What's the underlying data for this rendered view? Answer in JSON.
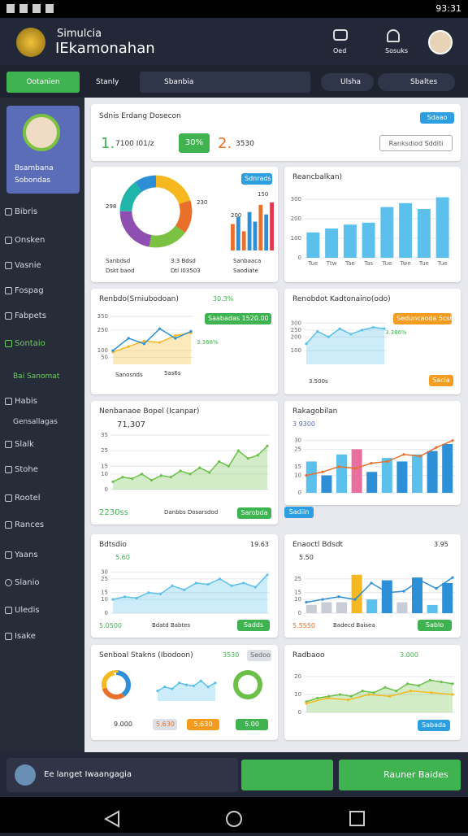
{
  "status_bar": {
    "time": "93:31"
  },
  "header": {
    "app_name": "Simulcia",
    "title": "IEkamonahan",
    "actions": [
      "Oed",
      "Sosuks"
    ]
  },
  "toolbar": {
    "primary_button": "Ootanien",
    "view": "Stanly",
    "search": "Sbanbia",
    "filter": "Ulsha",
    "status": "Sbaltes"
  },
  "sidebar": {
    "profile": {
      "name": "Bsambana",
      "role": "Sobondas"
    },
    "items": [
      "Bibris",
      "Onsken",
      "Vasnie",
      "Fospag",
      "Fabpets",
      "Sontaio"
    ],
    "section": "Bai Sanomat",
    "items2": [
      "Habis",
      "Gensallagas",
      "Slalk",
      "Stohe",
      "Rootel",
      "Rances",
      "Yaans",
      "Slanio",
      "Uledis",
      "Isake"
    ]
  },
  "panels": [
    {
      "title": "Sdnis Erdang Dosecon",
      "stat1_rank": "1.",
      "stat1": "7100 I01/z",
      "badge": "30%",
      "stat2_rank": "2.",
      "stat2": "3530",
      "button": "Ranksdiod Sdditi",
      "small_button": "Sdaao"
    },
    {
      "button": "Sdnrads",
      "donut_labels": [
        "298",
        "230"
      ],
      "legend": [
        "Sanbdsd",
        "Dskt baod",
        "3:3 Bdsd",
        "Dtl I03503"
      ],
      "bar_labels": [
        "200",
        "150"
      ],
      "bar_footer": [
        "Sanbaaca",
        "Saodiate"
      ],
      "charts": [
        {
          "type": "donut",
          "values": [
            20,
            15,
            18,
            22,
            15,
            10
          ],
          "colors": [
            "#f5b820",
            "#e8702a",
            "#7cc242",
            "#8e4fb0",
            "#1fb5a8",
            "#2d8fd6"
          ]
        },
        {
          "type": "bar",
          "values": [
            55,
            70,
            40,
            80,
            60,
            95,
            75,
            100
          ],
          "colors": [
            "#e8702a",
            "#2d8fd6",
            "#e8702a",
            "#2d8fd6",
            "#2d8fd6",
            "#e8702a",
            "#2d8fd6",
            "#e0384f"
          ],
          "ylim": [
            0,
            110
          ]
        }
      ]
    },
    {
      "title": "Reancbalkan)",
      "charts": [
        {
          "type": "bar",
          "values": [
            130,
            150,
            170,
            180,
            260,
            280,
            250,
            310
          ],
          "color": "#5bc0eb",
          "ylim": [
            0,
            350
          ],
          "yticks": [
            0,
            100,
            200,
            300
          ],
          "categories": [
            "Tue",
            "Ttw",
            "Tae",
            "Tas",
            "Tue",
            "Twe",
            "Tue",
            "Tue"
          ]
        }
      ]
    },
    {
      "title": "Renbdo(Srniubodoan)",
      "badge": "30.3%",
      "button": "Saabadas 1520.00",
      "change": "3.368%",
      "footer": [
        "Sanosnds",
        "5as6s"
      ],
      "charts": [
        {
          "type": "area",
          "values": [
            90,
            130,
            170,
            160,
            210,
            230
          ],
          "color": "#f5b820",
          "ylim": [
            0,
            350
          ],
          "yticks": [
            50,
            100,
            250,
            350
          ]
        },
        {
          "type": "line",
          "values": [
            100,
            190,
            150,
            260,
            190,
            240
          ],
          "color": "#2d8fd6",
          "ylim": [
            0,
            350
          ]
        }
      ]
    },
    {
      "title": "Renobdot Kadtonaino(odo)",
      "button": "Seduncaoda 5cs6",
      "change": "3.386%",
      "footer": "3.500s",
      "footer_button": "Sacia",
      "charts": [
        {
          "type": "area",
          "values": [
            150,
            240,
            200,
            260,
            220,
            250,
            270,
            260
          ],
          "color": "#5bc0eb",
          "ylim": [
            0,
            350
          ],
          "yticks": [
            100,
            200,
            250,
            300
          ]
        }
      ]
    },
    {
      "title": "Nenbanaoe Bopel (Icanpar)",
      "value": "71,307",
      "footer_value": "2230ss",
      "footer_text": "Danbbs Dosarsdod",
      "button": "Sarobda",
      "charts": [
        {
          "type": "area",
          "values": [
            5,
            8,
            7,
            10,
            6,
            9,
            8,
            12,
            10,
            14,
            11,
            18,
            15,
            25,
            20,
            22,
            28
          ],
          "color": "#6cc04a",
          "ylim": [
            0,
            35
          ],
          "yticks": [
            0,
            10,
            15,
            25,
            35
          ]
        }
      ]
    },
    {
      "title": "Rakagobilan",
      "value": "3 9300",
      "button": "Sadiin",
      "charts": [
        {
          "type": "bar",
          "values": [
            18,
            10,
            22,
            25,
            12,
            20,
            18,
            22,
            24,
            28
          ],
          "colors": [
            "#5bc0eb",
            "#2d8fd6",
            "#5bc0eb",
            "#e86fa0",
            "#2d8fd6",
            "#5bc0eb",
            "#2d8fd6",
            "#5bc0eb",
            "#2d8fd6",
            "#2d8fd6"
          ],
          "ylim": [
            0,
            35
          ],
          "yticks": [
            0,
            10,
            15,
            25,
            30
          ]
        },
        {
          "type": "line",
          "values": [
            10,
            12,
            15,
            14,
            17,
            18,
            22,
            21,
            26,
            30
          ],
          "color": "#e8702a",
          "ylim": [
            0,
            35
          ]
        }
      ]
    },
    {
      "title": "Bdtsdio",
      "stat": "5.60",
      "value": "19.63",
      "footer_value": "5.0500",
      "footer_text": "Bdatd Babtes",
      "button": "Sadds",
      "charts": [
        {
          "type": "area",
          "values": [
            10,
            12,
            11,
            15,
            14,
            20,
            17,
            22,
            21,
            25,
            20,
            22,
            19,
            28
          ],
          "color": "#5bc0eb",
          "ylim": [
            0,
            35
          ],
          "yticks": [
            0,
            10,
            15,
            25,
            30
          ]
        }
      ]
    },
    {
      "title": "Enaoctl Bdsdt",
      "stat": "5.50",
      "value": "3.95",
      "footer_value": "5.5550",
      "footer_text": "Badecd Baisea",
      "button": "Sablo",
      "charts": [
        {
          "type": "bar",
          "values": [
            6,
            8,
            8,
            28,
            10,
            24,
            8,
            26,
            6,
            22
          ],
          "colors": [
            "#c7ccd6",
            "#c7ccd6",
            "#c7ccd6",
            "#f5b820",
            "#5bc0eb",
            "#2d8fd6",
            "#c7ccd6",
            "#2d8fd6",
            "#5bc0eb",
            "#2d8fd6"
          ],
          "ylim": [
            0,
            35
          ],
          "yticks": [
            0,
            10,
            15,
            25
          ]
        },
        {
          "type": "line",
          "values": [
            8,
            10,
            12,
            10,
            22,
            15,
            16,
            24,
            18,
            26
          ],
          "color": "#2d8fd6",
          "ylim": [
            0,
            35
          ]
        }
      ]
    },
    {
      "title": "Senboal Stakns (Ibodoon)",
      "badge": "3530",
      "button": "Sedoo",
      "stats": [
        "9.000",
        "5.630",
        "5.630",
        "5.00"
      ],
      "charts": [
        {
          "type": "donut",
          "values": [
            40,
            30,
            30
          ],
          "colors": [
            "#2d8fd6",
            "#e8702a",
            "#f5b820"
          ]
        },
        {
          "type": "area",
          "values": [
            10,
            14,
            12,
            18,
            16,
            15,
            20,
            14,
            18
          ],
          "color": "#5bc0eb",
          "ylim": [
            0,
            25
          ]
        },
        {
          "type": "donut",
          "values": [
            100
          ],
          "colors": [
            "#6cc04a"
          ]
        }
      ]
    },
    {
      "title": "Radbaoo",
      "badge": "3.000",
      "button": "Sabada",
      "charts": [
        {
          "type": "area",
          "values": [
            6,
            8,
            9,
            10,
            9,
            12,
            11,
            14,
            12,
            16,
            15,
            18,
            17,
            16
          ],
          "color": "#6cc04a",
          "ylim": [
            0,
            25
          ],
          "yticks": [
            0,
            10,
            20
          ]
        },
        {
          "type": "line",
          "values": [
            5,
            8,
            7,
            10,
            9,
            12,
            11,
            10
          ],
          "color": "#f5b820",
          "ylim": [
            0,
            25
          ]
        }
      ]
    }
  ],
  "bottom_bar": {
    "message": "Ee langet Iwaangagia",
    "action": "Rauner Baides"
  }
}
